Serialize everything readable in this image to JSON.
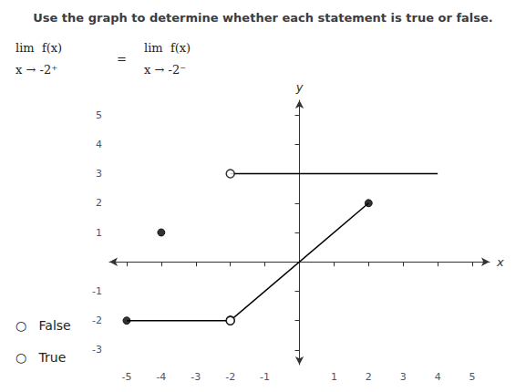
{
  "chart_data": {
    "type": "line",
    "title": "Use the graph to determine whether each statement is true or false.",
    "xlabel": "x",
    "ylabel": "y",
    "xlim": [
      -5.5,
      5.5
    ],
    "ylim": [
      -3.5,
      5.5
    ],
    "xticks": [
      -5,
      -4,
      -3,
      -2,
      -1,
      1,
      2,
      3,
      4,
      5
    ],
    "yticks": [
      -3,
      -2,
      -1,
      1,
      2,
      3,
      4,
      5
    ],
    "grid": false,
    "series": [
      {
        "type": "line",
        "color": "#000000",
        "x": [
          -5,
          -2
        ],
        "values": [
          -2,
          -2
        ]
      },
      {
        "type": "line",
        "color": "#000000",
        "x": [
          -2,
          2
        ],
        "values": [
          -2,
          2
        ]
      },
      {
        "type": "line",
        "color": "#000000",
        "x": [
          -2,
          4
        ],
        "values": [
          3,
          3
        ]
      },
      {
        "type": "scatter",
        "marker": "filled",
        "color": "#000000",
        "x": [
          -5,
          2,
          -4
        ],
        "values": [
          -2,
          2,
          1
        ]
      },
      {
        "type": "scatter",
        "marker": "open",
        "color": "#000000",
        "x": [
          -2,
          -2,
          -2
        ],
        "values": [
          -2,
          -2,
          3
        ]
      }
    ],
    "annotations": [
      "lim  f(x)",
      "x → -2⁺",
      "=",
      "lim  f(x)",
      "x → -2⁻",
      "○   False",
      "○   True"
    ]
  }
}
